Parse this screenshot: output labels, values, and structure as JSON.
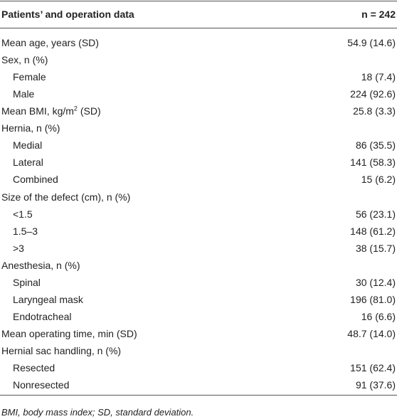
{
  "table": {
    "header": [
      "Patients’ and operation data",
      "n = 242"
    ],
    "rows": [
      {
        "label": "Mean age, years (SD)",
        "value": "54.9 (14.6)"
      },
      {
        "label": "Sex, n (%)",
        "items": [
          {
            "label": "Female",
            "value": "18 (7.4)"
          },
          {
            "label": "Male",
            "value": "224 (92.6)"
          }
        ]
      },
      {
        "label": {
          "text": "Mean BMI, kg/m",
          "sup": "2",
          "after": " (SD)"
        },
        "value": "25.8 (3.3)"
      },
      {
        "label": "Hernia, n (%)",
        "items": [
          {
            "label": "Medial",
            "value": "86 (35.5)"
          },
          {
            "label": "Lateral",
            "value": "141 (58.3)"
          },
          {
            "label": "Combined",
            "value": "15 (6.2)"
          }
        ]
      },
      {
        "label": "Size of the defect (cm), n (%)",
        "items": [
          {
            "label": "<1.5",
            "value": "56 (23.1)"
          },
          {
            "label": "1.5–3",
            "value": "148 (61.2)"
          },
          {
            "label": ">3",
            "value": "38 (15.7)"
          }
        ]
      },
      {
        "label": "Anesthesia, n (%)",
        "items": [
          {
            "label": "Spinal",
            "value": "30 (12.4)"
          },
          {
            "label": "Laryngeal mask",
            "value": "196 (81.0)"
          },
          {
            "label": "Endotracheal",
            "value": "16 (6.6)"
          }
        ]
      },
      {
        "label": "Mean operating time, min (SD)",
        "value": "48.7 (14.0)"
      },
      {
        "label": "Hernial sac handling, n (%)",
        "items": [
          {
            "label": "Resected",
            "value": "151 (62.4)"
          },
          {
            "label": "Nonresected",
            "value": "91 (37.6)"
          }
        ]
      }
    ],
    "footnote": "BMI, body mass index; SD, standard deviation."
  }
}
